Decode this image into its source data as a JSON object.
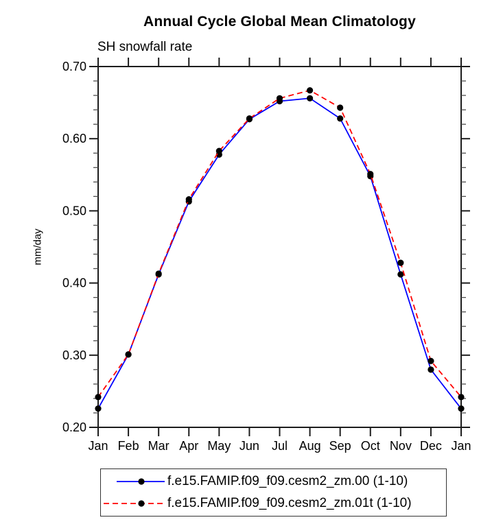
{
  "title": "Annual Cycle Global Mean Climatology",
  "subtitle": "SH snowfall rate",
  "colors": {
    "axis": "#1c1c1c",
    "minor_tick": "#4d4d4d",
    "series1": "#0000ff",
    "series2": "#ff0000",
    "marker": "#000000"
  },
  "chart_data": {
    "type": "line",
    "title": "Annual Cycle Global Mean Climatology",
    "subtitle": "SH snowfall rate",
    "xlabel": "",
    "ylabel": "mm/day",
    "categories": [
      "Jan",
      "Feb",
      "Mar",
      "Apr",
      "May",
      "Jun",
      "Jul",
      "Aug",
      "Sep",
      "Oct",
      "Nov",
      "Dec",
      "Jan"
    ],
    "ylim": [
      0.2,
      0.7
    ],
    "ytick_major": [
      0.2,
      0.3,
      0.4,
      0.5,
      0.6,
      0.7
    ],
    "ytick_labels": [
      "0.20",
      "0.30",
      "0.40",
      "0.50",
      "0.60",
      "0.70"
    ],
    "ytick_minor_step": 0.02,
    "grid": false,
    "legend_position": "bottom",
    "series": [
      {
        "name": "f.e15.FAMIP.f09_f09.cesm2_zm.00 (1-10)",
        "color": "#0000ff",
        "style": "solid",
        "marker": "circle",
        "values": [
          0.226,
          0.301,
          0.412,
          0.513,
          0.578,
          0.627,
          0.652,
          0.656,
          0.628,
          0.548,
          0.412,
          0.28,
          0.226
        ]
      },
      {
        "name": "f.e15.FAMIP.f09_f09.cesm2_zm.01t (1-10)",
        "color": "#ff0000",
        "style": "dashed",
        "marker": "circle",
        "values": [
          0.242,
          0.301,
          0.413,
          0.516,
          0.583,
          0.628,
          0.656,
          0.667,
          0.643,
          0.551,
          0.428,
          0.292,
          0.242
        ]
      }
    ]
  }
}
